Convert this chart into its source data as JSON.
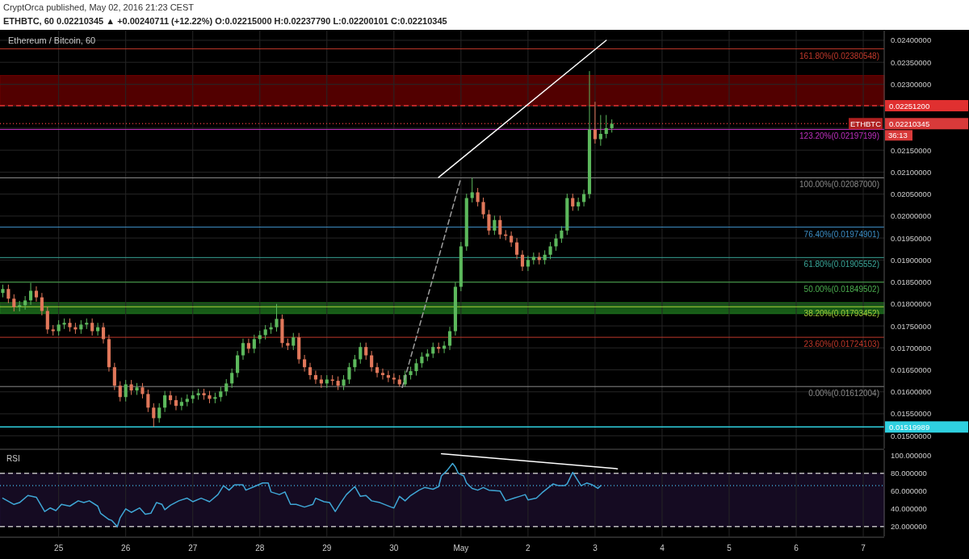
{
  "chart_data": [
    {
      "type": "candlestick",
      "title": "CryptOrca published, May 02, 2016 21:23 CEST",
      "subtitle": "ETHBTC, 60  0.02210345 ▲ +0.00240711 (+12.22%) O:0.02215000 H:0.02237790 L:0.02200101 C:0.02210345",
      "annotations": [
        "Ethereum / Bitcoin, 60",
        "ETHBTC",
        "36:13"
      ],
      "xlim": [
        "2016-04-24T03:00",
        "2016-05-07T07:30"
      ],
      "xticks": [
        {
          "value": "2016-04-25",
          "label": null
        },
        {
          "value": "2016-04-26",
          "label": null
        },
        {
          "value": "2016-04-27",
          "label": null
        },
        {
          "value": "2016-04-28",
          "label": null
        },
        {
          "value": "2016-04-29",
          "label": null
        },
        {
          "value": "2016-04-30",
          "label": null
        },
        {
          "value": "2016-05-01",
          "label": null
        },
        {
          "value": "2016-05-02",
          "label": null
        },
        {
          "value": "2016-05-03",
          "label": null
        },
        {
          "value": "2016-05-04",
          "label": null
        },
        {
          "value": "2016-05-05",
          "label": null
        },
        {
          "value": "2016-05-06",
          "label": null
        },
        {
          "value": "2016-05-07",
          "label": null
        }
      ],
      "ylim": [
        0.01471,
        0.02422
      ],
      "yticks": [
        {
          "value": 0.015,
          "label": "0.01500000"
        },
        {
          "value": 0.0155,
          "label": "0.01550000"
        },
        {
          "value": 0.016,
          "label": "0.01600000"
        },
        {
          "value": 0.0165,
          "label": "0.01650000"
        },
        {
          "value": 0.017,
          "label": "0.01700000"
        },
        {
          "value": 0.0175,
          "label": "0.01750000"
        },
        {
          "value": 0.018,
          "label": "0.01800000"
        },
        {
          "value": 0.0185,
          "label": "0.01850000"
        },
        {
          "value": 0.019,
          "label": "0.01900000"
        },
        {
          "value": 0.0195,
          "label": "0.01950000"
        },
        {
          "value": 0.02,
          "label": "0.02000000"
        },
        {
          "value": 0.0205,
          "label": "0.02050000"
        },
        {
          "value": 0.021,
          "label": "0.02100000"
        },
        {
          "value": 0.0215,
          "label": "0.02150000"
        },
        {
          "value": 0.022,
          "label": null
        },
        {
          "value": 0.0225,
          "label": null
        },
        {
          "value": 0.023,
          "label": "0.02300000"
        },
        {
          "value": 0.0235,
          "label": "0.02350000"
        },
        {
          "value": 0.024,
          "label": "0.02400000"
        }
      ],
      "tick_labels": "y",
      "grid": true,
      "bands": [
        {
          "axis": "y",
          "from": 0.02252,
          "to": 0.0232,
          "color": "#6e0000"
        },
        {
          "axis": "y",
          "from": 0.01778,
          "to": 0.01803,
          "color": "#1f7a1f"
        }
      ],
      "ref_lines": [
        {
          "axis": "y",
          "value": 0.02380548,
          "label": "161.80%(0.02380548)",
          "color": "#c0392b"
        },
        {
          "axis": "y",
          "value": 0.022512,
          "label": "0.02251200",
          "color": "#e03030",
          "line_style": "dashed"
        },
        {
          "axis": "y",
          "value": 0.02210345,
          "label": "0.02210345",
          "color": "#d83a3a",
          "line_style": "dotted"
        },
        {
          "axis": "y",
          "value": 0.02197199,
          "label": "123.20%(0.02197199)",
          "color": "#c030c0"
        },
        {
          "axis": "y",
          "value": 0.02087,
          "label": "100.00%(0.02087000)",
          "color": "#8a8a8a"
        },
        {
          "axis": "y",
          "value": 0.01974901,
          "label": "76.40%(0.01974901)",
          "color": "#3d8fc6"
        },
        {
          "axis": "y",
          "value": 0.01905552,
          "label": "61.80%(0.01905552)",
          "color": "#3aa89a"
        },
        {
          "axis": "y",
          "value": 0.01849502,
          "label": "50.00%(0.01849502)",
          "color": "#4caf50"
        },
        {
          "axis": "y",
          "value": 0.01793452,
          "label": "38.20%(0.01793452)",
          "color": "#a5c83a"
        },
        {
          "axis": "y",
          "value": 0.01724103,
          "label": "23.60%(0.01724103)",
          "color": "#c0392b"
        },
        {
          "axis": "y",
          "value": 0.01612004,
          "label": "0.00%(0.01612004)",
          "color": "#8a8a8a"
        },
        {
          "axis": "y",
          "value": 0.01519989,
          "label": "0.01519989",
          "color": "#2fd0e0",
          "line_style": "solid"
        }
      ],
      "series": [
        {
          "x": [
            "2016-04-24T04:00",
            "2016-04-24T06:00",
            "2016-04-24T08:00",
            "2016-04-24T10:00",
            "2016-04-24T12:00",
            "2016-04-24T14:00",
            "2016-04-24T16:00",
            "2016-04-24T18:00",
            "2016-04-24T20:00",
            "2016-04-24T22:00",
            "2016-04-25T00:00",
            "2016-04-25T02:00",
            "2016-04-25T04:00",
            "2016-04-25T06:00",
            "2016-04-25T08:00",
            "2016-04-25T10:00",
            "2016-04-25T12:00",
            "2016-04-25T14:00",
            "2016-04-25T16:00",
            "2016-04-25T18:00",
            "2016-04-25T20:00",
            "2016-04-25T22:00",
            "2016-04-26T00:00",
            "2016-04-26T02:00",
            "2016-04-26T04:00",
            "2016-04-26T06:00",
            "2016-04-26T08:00",
            "2016-04-26T10:00",
            "2016-04-26T12:00",
            "2016-04-26T14:00",
            "2016-04-26T16:00",
            "2016-04-26T18:00",
            "2016-04-26T20:00",
            "2016-04-26T22:00",
            "2016-04-27T00:00",
            "2016-04-27T02:00",
            "2016-04-27T04:00",
            "2016-04-27T06:00",
            "2016-04-27T08:00",
            "2016-04-27T10:00",
            "2016-04-27T12:00",
            "2016-04-27T14:00",
            "2016-04-27T16:00",
            "2016-04-27T18:00",
            "2016-04-27T20:00",
            "2016-04-27T22:00",
            "2016-04-28T00:00",
            "2016-04-28T02:00",
            "2016-04-28T04:00",
            "2016-04-28T06:00",
            "2016-04-28T08:00",
            "2016-04-28T10:00",
            "2016-04-28T12:00",
            "2016-04-28T14:00",
            "2016-04-28T16:00",
            "2016-04-28T18:00",
            "2016-04-28T20:00",
            "2016-04-28T22:00",
            "2016-04-29T00:00",
            "2016-04-29T02:00",
            "2016-04-29T04:00",
            "2016-04-29T06:00",
            "2016-04-29T08:00",
            "2016-04-29T10:00",
            "2016-04-29T12:00",
            "2016-04-29T14:00",
            "2016-04-29T16:00",
            "2016-04-29T18:00",
            "2016-04-29T20:00",
            "2016-04-29T22:00",
            "2016-04-30T00:00",
            "2016-04-30T02:00",
            "2016-04-30T04:00",
            "2016-04-30T06:00",
            "2016-04-30T08:00",
            "2016-04-30T10:00",
            "2016-04-30T12:00",
            "2016-04-30T14:00",
            "2016-04-30T16:00",
            "2016-04-30T18:00",
            "2016-04-30T20:00",
            "2016-04-30T22:00",
            "2016-05-01T00:00",
            "2016-05-01T02:00",
            "2016-05-01T04:00",
            "2016-05-01T06:00",
            "2016-05-01T08:00",
            "2016-05-01T10:00",
            "2016-05-01T12:00",
            "2016-05-01T14:00",
            "2016-05-01T16:00",
            "2016-05-01T18:00",
            "2016-05-01T20:00",
            "2016-05-01T22:00",
            "2016-05-02T00:00",
            "2016-05-02T02:00",
            "2016-05-02T04:00",
            "2016-05-02T06:00",
            "2016-05-02T08:00",
            "2016-05-02T10:00",
            "2016-05-02T12:00",
            "2016-05-02T14:00",
            "2016-05-02T16:00",
            "2016-05-02T18:00",
            "2016-05-02T20:00",
            "2016-05-02T22:00",
            "2016-05-03T00:00",
            "2016-05-03T02:00",
            "2016-05-03T04:00",
            "2016-05-03T06:00"
          ],
          "ohlc": [
            [
              0.01825,
              0.01844,
              0.01815,
              0.01834
            ],
            [
              0.01834,
              0.01844,
              0.01802,
              0.01812
            ],
            [
              0.01812,
              0.01822,
              0.01783,
              0.01793
            ],
            [
              0.01793,
              0.01807,
              0.01783,
              0.01797
            ],
            [
              0.01797,
              0.01818,
              0.01787,
              0.01808
            ],
            [
              0.01808,
              0.01848,
              0.01798,
              0.0183
            ],
            [
              0.0183,
              0.0184,
              0.01805,
              0.01815
            ],
            [
              0.01815,
              0.01825,
              0.01774,
              0.01784
            ],
            [
              0.01784,
              0.01794,
              0.01732,
              0.01742
            ],
            [
              0.01742,
              0.01752,
              0.01728,
              0.01738
            ],
            [
              0.01738,
              0.01763,
              0.01728,
              0.01753
            ],
            [
              0.01753,
              0.01767,
              0.01743,
              0.01757
            ],
            [
              0.01757,
              0.01767,
              0.01737,
              0.01747
            ],
            [
              0.01747,
              0.01757,
              0.01732,
              0.01742
            ],
            [
              0.01742,
              0.01763,
              0.01732,
              0.01753
            ],
            [
              0.01753,
              0.01767,
              0.01743,
              0.01757
            ],
            [
              0.01757,
              0.01767,
              0.01728,
              0.01738
            ],
            [
              0.01738,
              0.01757,
              0.01728,
              0.01747
            ],
            [
              0.01747,
              0.01757,
              0.0171,
              0.0172
            ],
            [
              0.0172,
              0.0173,
              0.01646,
              0.01656
            ],
            [
              0.01656,
              0.01666,
              0.01604,
              0.01614
            ],
            [
              0.01614,
              0.01624,
              0.01578,
              0.01588
            ],
            [
              0.01588,
              0.01627,
              0.01578,
              0.01617
            ],
            [
              0.01617,
              0.01627,
              0.01593,
              0.01603
            ],
            [
              0.01603,
              0.0162,
              0.01593,
              0.0161
            ],
            [
              0.0161,
              0.0162,
              0.01585,
              0.01595
            ],
            [
              0.01595,
              0.01605,
              0.01554,
              0.01564
            ],
            [
              0.01564,
              0.01574,
              0.0152,
              0.0154
            ],
            [
              0.0154,
              0.01574,
              0.0153,
              0.01564
            ],
            [
              0.01564,
              0.01602,
              0.01554,
              0.01592
            ],
            [
              0.01592,
              0.01602,
              0.01571,
              0.01581
            ],
            [
              0.01581,
              0.01591,
              0.01558,
              0.01568
            ],
            [
              0.01568,
              0.01587,
              0.01558,
              0.01577
            ],
            [
              0.01577,
              0.01594,
              0.01567,
              0.01584
            ],
            [
              0.01584,
              0.01602,
              0.01574,
              0.01592
            ],
            [
              0.01592,
              0.01607,
              0.01582,
              0.01597
            ],
            [
              0.01597,
              0.01607,
              0.01582,
              0.01592
            ],
            [
              0.01592,
              0.01602,
              0.01574,
              0.01584
            ],
            [
              0.01584,
              0.01598,
              0.01574,
              0.01588
            ],
            [
              0.01588,
              0.01611,
              0.01578,
              0.01601
            ],
            [
              0.01601,
              0.01629,
              0.01591,
              0.01619
            ],
            [
              0.01619,
              0.01653,
              0.01609,
              0.01643
            ],
            [
              0.01643,
              0.01693,
              0.01633,
              0.01683
            ],
            [
              0.01683,
              0.01721,
              0.01673,
              0.01711
            ],
            [
              0.01711,
              0.01721,
              0.01688,
              0.01698
            ],
            [
              0.01698,
              0.0173,
              0.01688,
              0.0172
            ],
            [
              0.0172,
              0.01739,
              0.0171,
              0.01729
            ],
            [
              0.01729,
              0.01752,
              0.01719,
              0.01742
            ],
            [
              0.01742,
              0.01757,
              0.01732,
              0.01747
            ],
            [
              0.01747,
              0.018,
              0.01737,
              0.01766
            ],
            [
              0.01766,
              0.01776,
              0.01701,
              0.01711
            ],
            [
              0.01711,
              0.01721,
              0.01695,
              0.01705
            ],
            [
              0.01705,
              0.01734,
              0.01695,
              0.01724
            ],
            [
              0.01724,
              0.01734,
              0.01664,
              0.01674
            ],
            [
              0.01674,
              0.01684,
              0.01646,
              0.01656
            ],
            [
              0.01656,
              0.01666,
              0.01628,
              0.01638
            ],
            [
              0.01638,
              0.01648,
              0.01618,
              0.01628
            ],
            [
              0.01628,
              0.01638,
              0.01609,
              0.01619
            ],
            [
              0.01619,
              0.01638,
              0.01609,
              0.01628
            ],
            [
              0.01628,
              0.01638,
              0.01615,
              0.01625
            ],
            [
              0.01625,
              0.01635,
              0.01604,
              0.01614
            ],
            [
              0.01614,
              0.01638,
              0.01604,
              0.01628
            ],
            [
              0.01628,
              0.01666,
              0.01618,
              0.01656
            ],
            [
              0.01656,
              0.01684,
              0.01646,
              0.01674
            ],
            [
              0.01674,
              0.01712,
              0.01664,
              0.01702
            ],
            [
              0.01702,
              0.01712,
              0.01673,
              0.01683
            ],
            [
              0.01683,
              0.01693,
              0.01646,
              0.01656
            ],
            [
              0.01656,
              0.01666,
              0.01633,
              0.01643
            ],
            [
              0.01643,
              0.01653,
              0.01628,
              0.01638
            ],
            [
              0.01638,
              0.01648,
              0.01622,
              0.01632
            ],
            [
              0.01632,
              0.01642,
              0.01618,
              0.01628
            ],
            [
              0.01628,
              0.01638,
              0.01612,
              0.01617
            ],
            [
              0.01617,
              0.01648,
              0.01612,
              0.01638
            ],
            [
              0.01638,
              0.01657,
              0.01628,
              0.01647
            ],
            [
              0.01647,
              0.01675,
              0.01637,
              0.01665
            ],
            [
              0.01665,
              0.0169,
              0.01655,
              0.0168
            ],
            [
              0.0168,
              0.01697,
              0.0167,
              0.01687
            ],
            [
              0.01687,
              0.01712,
              0.01677,
              0.01702
            ],
            [
              0.01702,
              0.01712,
              0.01688,
              0.01698
            ],
            [
              0.01698,
              0.01715,
              0.01688,
              0.01705
            ],
            [
              0.01705,
              0.01748,
              0.01695,
              0.01738
            ],
            [
              0.01738,
              0.01849,
              0.01728,
              0.01839
            ],
            [
              0.01839,
              0.01941,
              0.01829,
              0.01931
            ],
            [
              0.01931,
              0.02051,
              0.01921,
              0.02041
            ],
            [
              0.02041,
              0.02087,
              0.02031,
              0.02054
            ],
            [
              0.02054,
              0.02064,
              0.02022,
              0.02032
            ],
            [
              0.02032,
              0.02042,
              0.01994,
              0.02004
            ],
            [
              0.02004,
              0.02014,
              0.01957,
              0.01967
            ],
            [
              0.01967,
              0.02001,
              0.01957,
              0.01991
            ],
            [
              0.01991,
              0.02001,
              0.01948,
              0.01958
            ],
            [
              0.01958,
              0.01968,
              0.01945,
              0.01955
            ],
            [
              0.01955,
              0.01965,
              0.0193,
              0.0194
            ],
            [
              0.0194,
              0.0195,
              0.01902,
              0.01912
            ],
            [
              0.01912,
              0.01922,
              0.01875,
              0.01885
            ],
            [
              0.01885,
              0.0191,
              0.01875,
              0.019
            ],
            [
              0.019,
              0.01917,
              0.0189,
              0.01907
            ],
            [
              0.01907,
              0.01917,
              0.0189,
              0.019
            ],
            [
              0.019,
              0.01922,
              0.0189,
              0.01912
            ],
            [
              0.01912,
              0.01941,
              0.01902,
              0.01931
            ],
            [
              0.01931,
              0.01959,
              0.01921,
              0.01949
            ],
            [
              0.01949,
              0.01977,
              0.01939,
              0.01967
            ],
            [
              0.01967,
              0.02051,
              0.01957,
              0.02041
            ],
            [
              0.02041,
              0.02051,
              0.02012,
              0.02022
            ],
            [
              0.02022,
              0.02042,
              0.02012,
              0.02032
            ],
            [
              0.02032,
              0.0206,
              0.02022,
              0.0205
            ],
            [
              0.0205,
              0.0233,
              0.0204,
              0.02197
            ],
            [
              0.02197,
              0.0226,
              0.02165,
              0.02175
            ],
            [
              0.02175,
              0.0223,
              0.0216,
              0.02187
            ],
            [
              0.02187,
              0.0223,
              0.02177,
              0.022
            ],
            [
              0.022,
              0.0222,
              0.0219,
              0.0221
            ]
          ]
        },
        {
          "type": "line",
          "x": [
            "2016-04-30T16:00",
            "2016-05-03T04:00"
          ],
          "values": [
            0.02088,
            0.024
          ],
          "color": "#ffffff"
        },
        {
          "type": "line",
          "x": [
            "2016-04-30T03:00",
            "2016-05-01T00:00"
          ],
          "values": [
            0.0161,
            0.02087
          ],
          "color": "#9e9e9e",
          "line_style": "dashed"
        }
      ]
    },
    {
      "type": "line",
      "title": "RSI",
      "xlim": [
        "2016-04-24T03:00",
        "2016-05-07T07:30"
      ],
      "xticks": [
        {
          "value": "2016-04-25",
          "label": "25"
        },
        {
          "value": "2016-04-26",
          "label": "26"
        },
        {
          "value": "2016-04-27",
          "label": "27"
        },
        {
          "value": "2016-04-28",
          "label": "28"
        },
        {
          "value": "2016-04-29",
          "label": "29"
        },
        {
          "value": "2016-04-30",
          "label": "30"
        },
        {
          "value": "2016-05-01",
          "label": "May"
        },
        {
          "value": "2016-05-02",
          "label": "2"
        },
        {
          "value": "2016-05-03",
          "label": "3"
        },
        {
          "value": "2016-05-04",
          "label": "4"
        },
        {
          "value": "2016-05-05",
          "label": "5"
        },
        {
          "value": "2016-05-06",
          "label": "6"
        },
        {
          "value": "2016-05-07",
          "label": "7"
        }
      ],
      "ylim": [
        9,
        106
      ],
      "yticks": [
        {
          "value": 20,
          "label": "20.000000"
        },
        {
          "value": 40,
          "label": "40.000000"
        },
        {
          "value": 60,
          "label": "60.000000"
        },
        {
          "value": 80,
          "label": "80.000000"
        },
        {
          "value": 100,
          "label": "100.000000"
        }
      ],
      "grid": "x",
      "bands": [
        {
          "axis": "y",
          "from": 20,
          "to": 80,
          "color": "#1c0f2e"
        }
      ],
      "ref_lines": [
        {
          "axis": "y",
          "value": 80,
          "color": "#bbbbbb",
          "line_style": "dashed"
        },
        {
          "axis": "y",
          "value": 20,
          "color": "#bbbbbb",
          "line_style": "dashed"
        },
        {
          "axis": "y",
          "value": 66,
          "color": "#3fa7d6",
          "line_style": "dotted"
        }
      ],
      "series": [
        {
          "x": [
            "2016-04-24T04:00",
            "2016-04-24T08:00",
            "2016-04-24T10:00",
            "2016-04-24T13:00",
            "2016-04-24T16:00",
            "2016-04-24T19:00",
            "2016-04-24T21:00",
            "2016-04-24T23:00",
            "2016-04-25T01:00",
            "2016-04-25T04:00",
            "2016-04-25T07:00",
            "2016-04-25T09:00",
            "2016-04-25T11:00",
            "2016-04-25T14:00",
            "2016-04-25T15:00",
            "2016-04-25T18:00",
            "2016-04-25T19:00",
            "2016-04-25T21:00",
            "2016-04-25T22:00",
            "2016-04-26T00:00",
            "2016-04-26T02:00",
            "2016-04-26T05:00",
            "2016-04-26T07:00",
            "2016-04-26T09:00",
            "2016-04-26T11:00",
            "2016-04-26T13:00",
            "2016-04-26T14:00",
            "2016-04-26T16:00",
            "2016-04-26T19:00",
            "2016-04-26T22:00",
            "2016-04-27T00:00",
            "2016-04-27T03:00",
            "2016-04-27T06:00",
            "2016-04-27T09:00",
            "2016-04-27T11:00",
            "2016-04-27T13:00",
            "2016-04-27T15:00",
            "2016-04-27T18:00",
            "2016-04-27T19:00",
            "2016-04-27T22:00",
            "2016-04-28T01:00",
            "2016-04-28T03:00",
            "2016-04-28T04:00",
            "2016-04-28T07:00",
            "2016-04-28T09:00",
            "2016-04-28T11:00",
            "2016-04-28T13:00",
            "2016-04-28T16:00",
            "2016-04-28T19:00",
            "2016-04-28T20:00",
            "2016-04-28T23:00",
            "2016-04-29T01:00",
            "2016-04-29T03:00",
            "2016-04-29T05:00",
            "2016-04-29T07:00",
            "2016-04-29T10:00",
            "2016-04-29T12:00",
            "2016-04-29T14:00",
            "2016-04-29T16:00",
            "2016-04-29T19:00",
            "2016-04-29T23:00",
            "2016-04-30T00:00",
            "2016-04-30T02:00",
            "2016-04-30T04:00",
            "2016-04-30T06:00",
            "2016-04-30T09:00",
            "2016-04-30T11:00",
            "2016-04-30T14:00",
            "2016-04-30T16:00",
            "2016-04-30T17:00",
            "2016-04-30T19:00",
            "2016-04-30T21:00",
            "2016-04-30T22:00",
            "2016-04-30T23:00",
            "2016-05-01T01:00",
            "2016-05-01T02:00",
            "2016-05-01T03:00",
            "2016-05-01T04:00",
            "2016-05-01T06:00",
            "2016-05-01T08:00",
            "2016-05-01T10:00",
            "2016-05-01T14:00",
            "2016-05-01T16:00",
            "2016-05-01T19:00",
            "2016-05-01T21:00",
            "2016-05-01T23:00",
            "2016-05-02T00:00",
            "2016-05-02T03:00",
            "2016-05-02T05:00",
            "2016-05-02T09:00",
            "2016-05-02T11:00",
            "2016-05-02T13:00",
            "2016-05-02T14:00",
            "2016-05-02T16:00",
            "2016-05-02T18:00",
            "2016-05-02T19:00",
            "2016-05-02T21:00",
            "2016-05-02T23:00",
            "2016-05-03T01:00",
            "2016-05-03T02:00"
          ],
          "values": [
            52,
            45,
            47,
            55,
            53,
            37,
            41,
            38,
            45,
            43,
            49,
            47,
            49,
            43,
            35,
            28,
            27,
            20,
            30,
            40,
            36,
            41,
            34,
            35,
            47,
            45,
            39,
            44,
            49,
            52,
            48,
            52,
            48,
            56,
            66,
            61,
            67,
            67,
            61,
            65,
            69,
            69,
            59,
            56,
            59,
            45,
            45,
            42,
            45,
            52,
            48,
            47,
            37,
            47,
            56,
            65,
            54,
            55,
            49,
            47,
            42,
            41,
            54,
            49,
            55,
            61,
            64,
            62,
            65,
            77,
            83,
            91,
            87,
            80,
            77,
            69,
            66,
            63,
            61,
            64,
            61,
            60,
            49,
            52,
            54,
            56,
            50,
            52,
            58,
            68,
            66,
            66,
            68,
            81,
            71,
            66,
            69,
            67,
            63,
            66
          ],
          "color": "#3fa7d6"
        },
        {
          "x": [
            "2016-04-30T17:00",
            "2016-05-03T08:00"
          ],
          "values": [
            102,
            85
          ],
          "color": "#ffffff"
        }
      ]
    }
  ]
}
